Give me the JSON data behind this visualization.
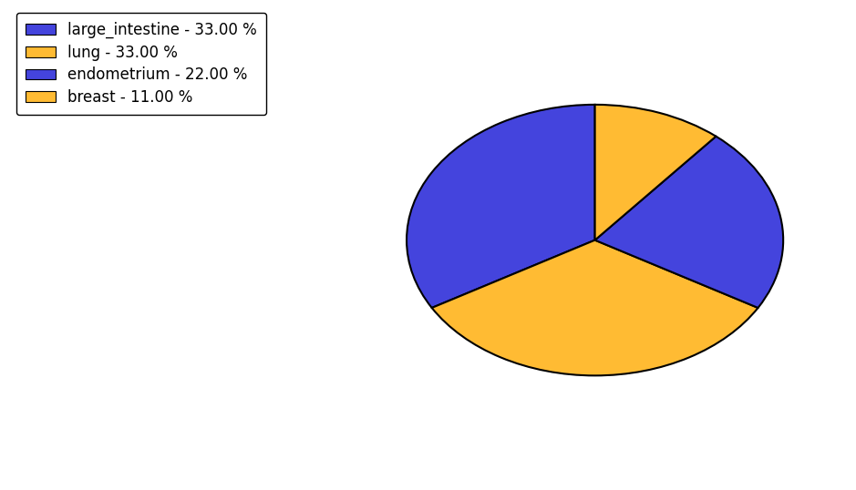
{
  "labels": [
    "large_intestine",
    "lung",
    "endometrium",
    "breast"
  ],
  "values": [
    33,
    33,
    22,
    11
  ],
  "colors": [
    "#4444dd",
    "#ffbb33",
    "#4444dd",
    "#ffbb33"
  ],
  "legend_labels": [
    "large_intestine - 33.00 %",
    "lung - 33.00 %",
    "endometrium - 22.00 %",
    "breast - 11.00 %"
  ],
  "legend_colors": [
    "#4444dd",
    "#ffbb33",
    "#4444dd",
    "#ffbb33"
  ],
  "background_color": "#ffffff",
  "edge_color": "#000000",
  "edge_width": 1.5,
  "startangle": 90,
  "legend_fontsize": 12,
  "aspect_ratio": 0.72
}
